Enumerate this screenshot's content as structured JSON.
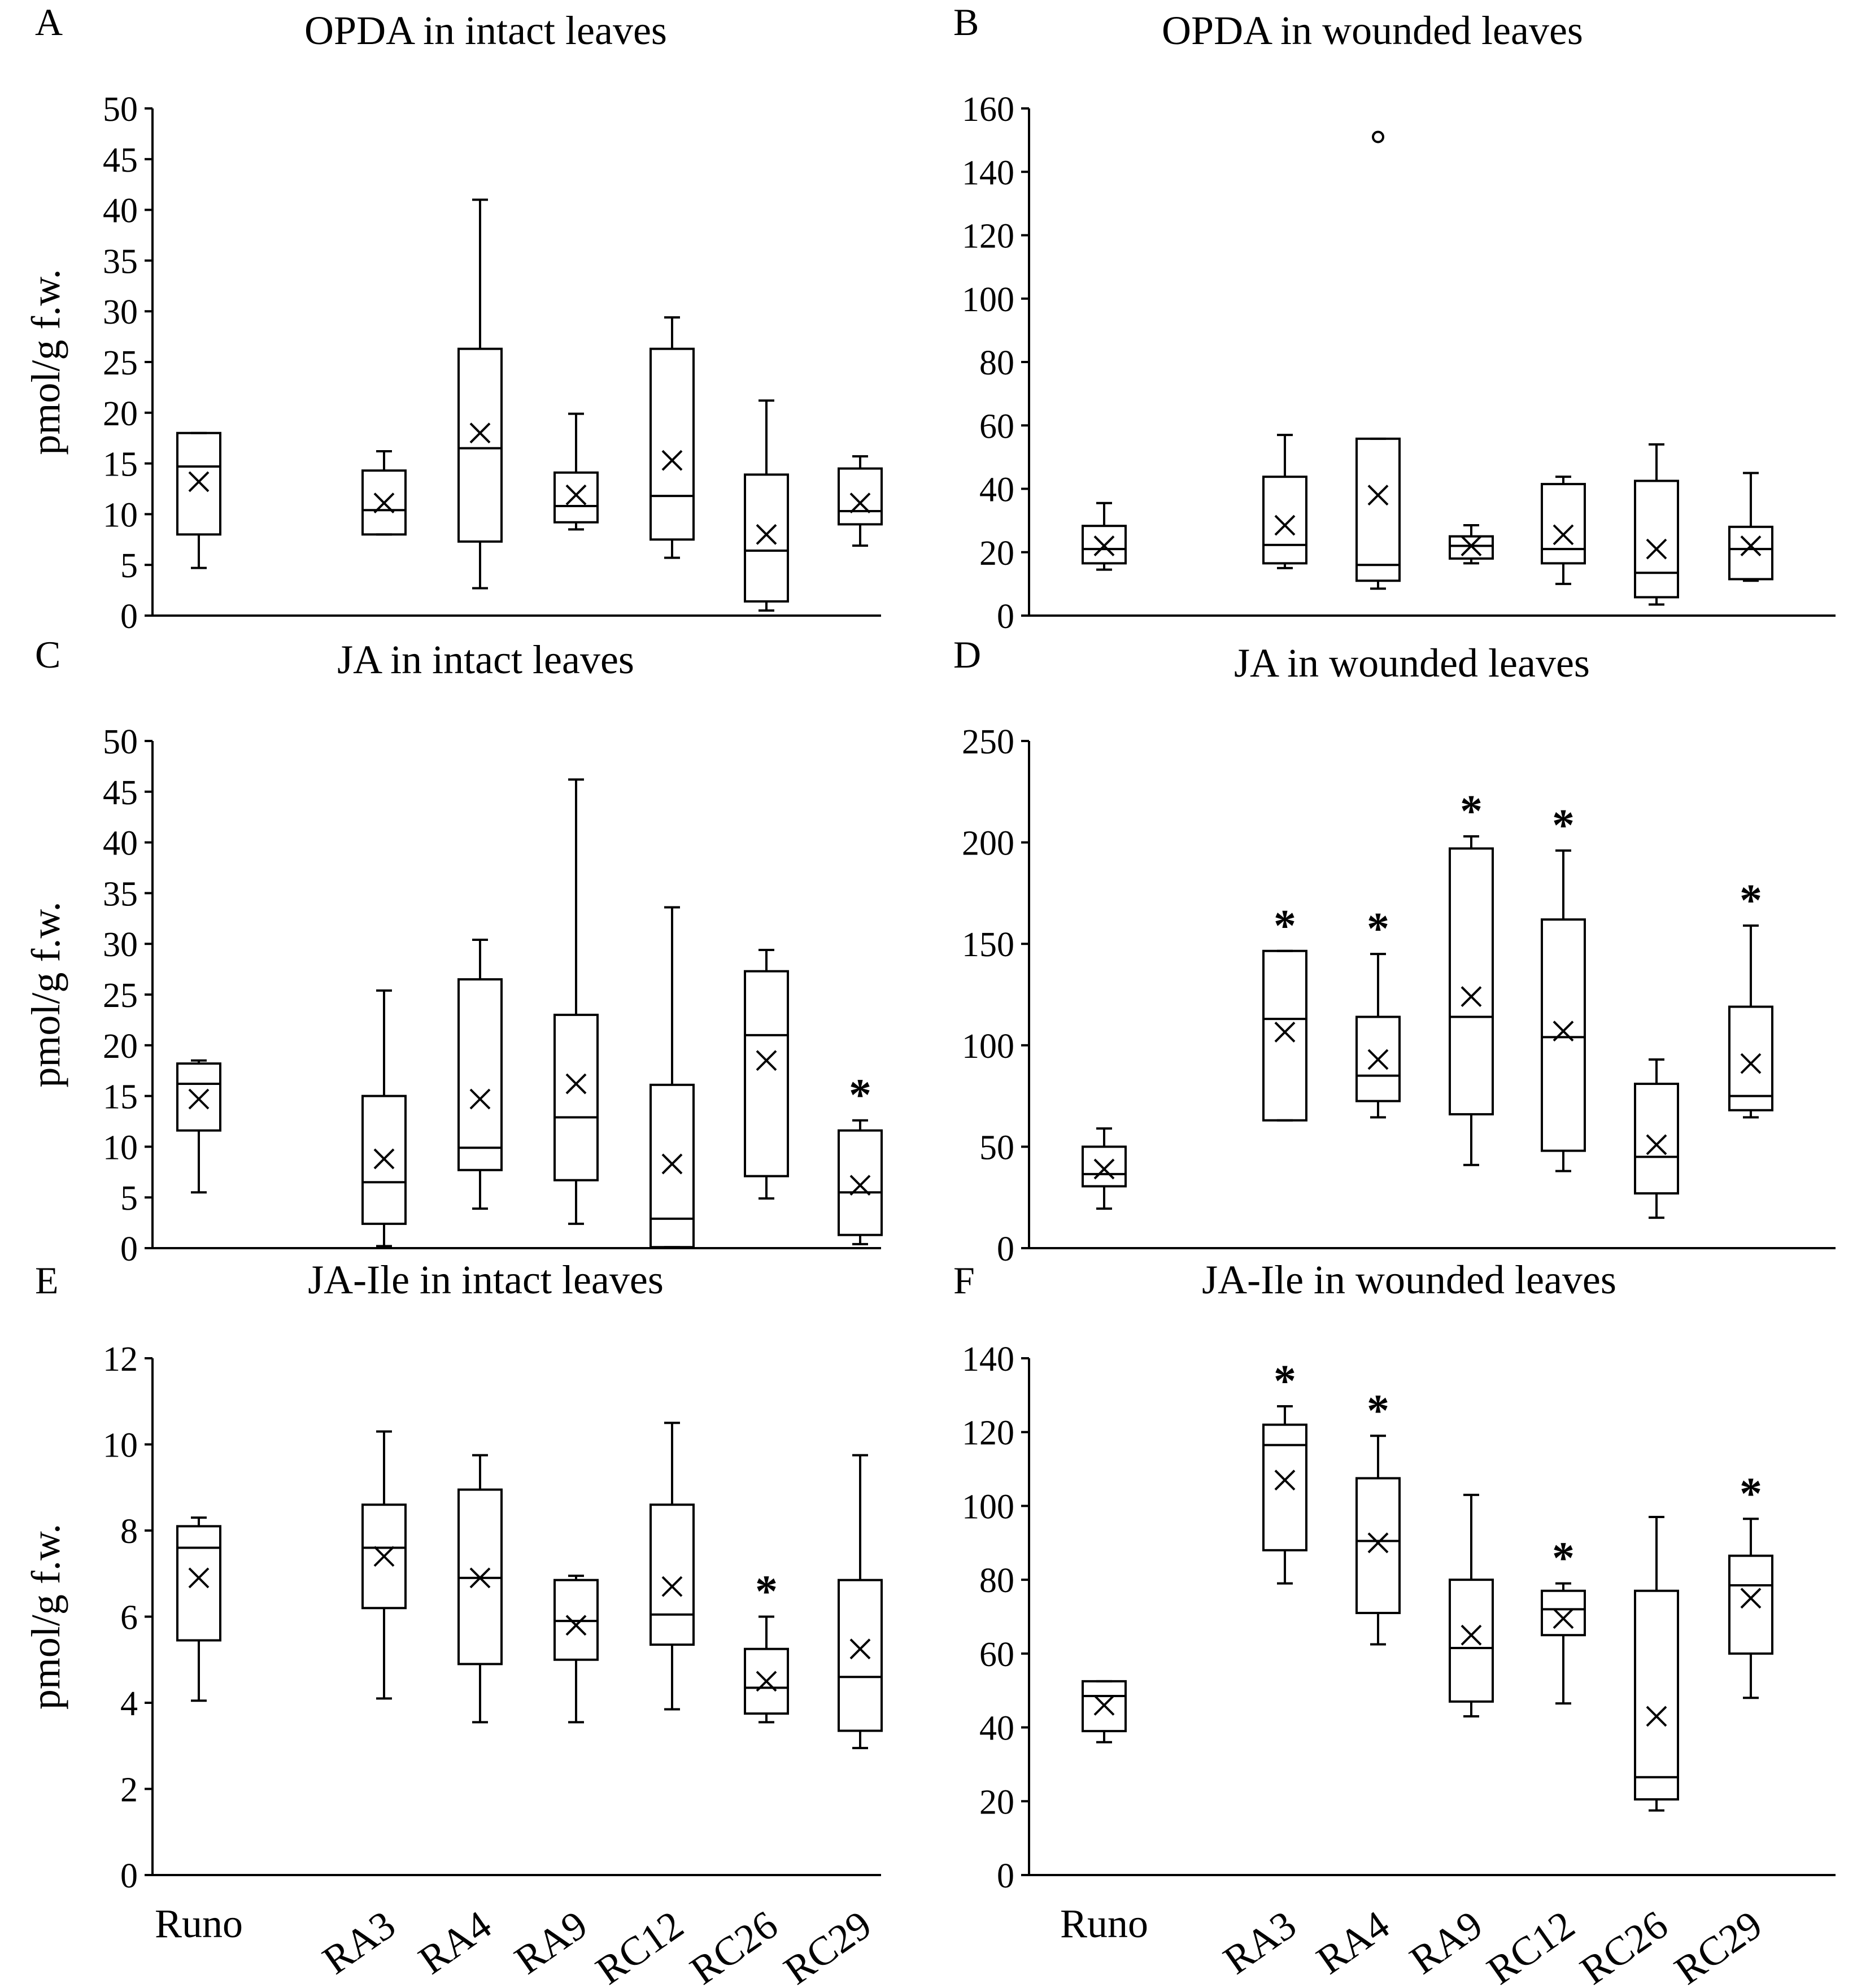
{
  "chart_data": [
    {
      "panel": "A",
      "type": "box",
      "title": "OPDA in intact leaves",
      "ylabel": "pmol/g f.w.",
      "ylim": [
        0,
        50
      ],
      "yticks": [
        0,
        5,
        10,
        15,
        20,
        25,
        30,
        35,
        40,
        45,
        50
      ],
      "categories": [
        "Runo",
        "RA3",
        "RA4",
        "RA9",
        "RC12",
        "RC26",
        "RC29"
      ],
      "boxes": [
        {
          "min": 4.7,
          "q1": 8.0,
          "median": 14.7,
          "q3": 18.0,
          "max": 18.0,
          "mean": 13.2,
          "sig": false
        },
        {
          "min": 8.0,
          "q1": 8.0,
          "median": 10.4,
          "q3": 14.3,
          "max": 16.2,
          "mean": 11.1,
          "sig": false
        },
        {
          "min": 2.7,
          "q1": 7.3,
          "median": 16.5,
          "q3": 26.3,
          "max": 41.0,
          "mean": 18.0,
          "sig": false
        },
        {
          "min": 8.5,
          "q1": 9.2,
          "median": 10.8,
          "q3": 14.1,
          "max": 19.9,
          "mean": 11.9,
          "sig": false
        },
        {
          "min": 5.7,
          "q1": 7.5,
          "median": 11.8,
          "q3": 26.3,
          "max": 29.4,
          "mean": 15.3,
          "sig": false
        },
        {
          "min": 0.5,
          "q1": 1.4,
          "median": 6.4,
          "q3": 13.9,
          "max": 21.2,
          "mean": 8.0,
          "sig": false
        },
        {
          "min": 6.9,
          "q1": 9.0,
          "median": 10.3,
          "q3": 14.5,
          "max": 15.7,
          "mean": 11.1,
          "sig": false
        }
      ],
      "outliers": []
    },
    {
      "panel": "B",
      "type": "box",
      "title": "OPDA in wounded leaves",
      "ylabel": "",
      "ylim": [
        0,
        160
      ],
      "yticks": [
        0,
        20,
        40,
        60,
        80,
        100,
        120,
        140,
        160
      ],
      "categories": [
        "Runo",
        "RA3",
        "RA4",
        "RA9",
        "RC12",
        "RC26",
        "RC29"
      ],
      "boxes": [
        {
          "min": 14.5,
          "q1": 16.5,
          "median": 21.0,
          "q3": 28.3,
          "max": 35.5,
          "mean": 22.0,
          "sig": false
        },
        {
          "min": 15.0,
          "q1": 16.5,
          "median": 22.3,
          "q3": 43.8,
          "max": 57.0,
          "mean": 28.5,
          "sig": false
        },
        {
          "min": 8.5,
          "q1": 11.0,
          "median": 16.0,
          "q3": 55.8,
          "max": 55.8,
          "mean": 38.0,
          "sig": false
        },
        {
          "min": 16.5,
          "q1": 18.0,
          "median": 22.0,
          "q3": 25.0,
          "max": 28.5,
          "mean": 22.0,
          "sig": false
        },
        {
          "min": 10.0,
          "q1": 16.5,
          "median": 21.0,
          "q3": 41.5,
          "max": 43.8,
          "mean": 25.5,
          "sig": false
        },
        {
          "min": 3.5,
          "q1": 5.8,
          "median": 13.5,
          "q3": 42.5,
          "max": 54.0,
          "mean": 21.0,
          "sig": false
        },
        {
          "min": 11.0,
          "q1": 11.5,
          "median": 21.0,
          "q3": 28.0,
          "max": 45.0,
          "mean": 22.0,
          "sig": false
        }
      ],
      "outliers": [
        {
          "category": "RA4",
          "value": 151
        }
      ]
    },
    {
      "panel": "C",
      "type": "box",
      "title": "JA in intact leaves",
      "ylabel": "pmol/g f.w.",
      "ylim": [
        0,
        50
      ],
      "yticks": [
        0,
        5,
        10,
        15,
        20,
        25,
        30,
        35,
        40,
        45,
        50
      ],
      "categories": [
        "Runo",
        "RA3",
        "RA4",
        "RA9",
        "RC12",
        "RC26",
        "RC29"
      ],
      "boxes": [
        {
          "min": 5.5,
          "q1": 11.6,
          "median": 16.2,
          "q3": 18.2,
          "max": 18.5,
          "mean": 14.7,
          "sig": false
        },
        {
          "min": 0.2,
          "q1": 2.4,
          "median": 6.5,
          "q3": 15.0,
          "max": 25.4,
          "mean": 8.8,
          "sig": false
        },
        {
          "min": 3.9,
          "q1": 7.7,
          "median": 9.9,
          "q3": 26.5,
          "max": 30.4,
          "mean": 14.7,
          "sig": false
        },
        {
          "min": 2.4,
          "q1": 6.7,
          "median": 12.9,
          "q3": 23.0,
          "max": 46.2,
          "mean": 16.2,
          "sig": false
        },
        {
          "min": 0.1,
          "q1": 0.1,
          "median": 2.9,
          "q3": 16.1,
          "max": 33.6,
          "mean": 8.3,
          "sig": false
        },
        {
          "min": 4.9,
          "q1": 7.1,
          "median": 21.0,
          "q3": 27.3,
          "max": 29.4,
          "mean": 18.5,
          "sig": false
        },
        {
          "min": 0.4,
          "q1": 1.3,
          "median": 5.5,
          "q3": 11.6,
          "max": 12.6,
          "mean": 6.2,
          "sig": true
        }
      ],
      "outliers": []
    },
    {
      "panel": "D",
      "type": "box",
      "title": "JA in wounded leaves",
      "ylabel": "",
      "ylim": [
        0,
        250
      ],
      "yticks": [
        0,
        50,
        100,
        150,
        200,
        250
      ],
      "categories": [
        "Runo",
        "RA3",
        "RA4",
        "RA9",
        "RC12",
        "RC26",
        "RC29"
      ],
      "boxes": [
        {
          "min": 19.5,
          "q1": 30.5,
          "median": 36.5,
          "q3": 50.0,
          "max": 59.0,
          "mean": 39.0,
          "sig": false
        },
        {
          "min": 63.0,
          "q1": 63.0,
          "median": 113.0,
          "q3": 146.5,
          "max": 146.5,
          "mean": 106.5,
          "sig": true
        },
        {
          "min": 64.5,
          "q1": 72.5,
          "median": 85.0,
          "q3": 114.0,
          "max": 145.0,
          "mean": 93.0,
          "sig": true
        },
        {
          "min": 41.0,
          "q1": 66.0,
          "median": 114.0,
          "q3": 197.0,
          "max": 203.0,
          "mean": 124.0,
          "sig": true
        },
        {
          "min": 38.0,
          "q1": 48.0,
          "median": 104.0,
          "q3": 162.0,
          "max": 196.0,
          "mean": 107.0,
          "sig": true
        },
        {
          "min": 15.0,
          "q1": 27.0,
          "median": 45.0,
          "q3": 81.0,
          "max": 93.0,
          "mean": 51.0,
          "sig": false
        },
        {
          "min": 64.5,
          "q1": 68.0,
          "median": 75.0,
          "q3": 119.0,
          "max": 159.0,
          "mean": 91.0,
          "sig": true
        }
      ],
      "outliers": []
    },
    {
      "panel": "E",
      "type": "box",
      "title": "JA-Ile in intact leaves",
      "ylabel": "pmol/g f.w.",
      "ylim": [
        0,
        12
      ],
      "yticks": [
        0,
        2,
        4,
        6,
        8,
        10,
        12
      ],
      "categories": [
        "Runo",
        "RA3",
        "RA4",
        "RA9",
        "RC12",
        "RC26",
        "RC29"
      ],
      "boxes": [
        {
          "min": 4.05,
          "q1": 5.45,
          "median": 7.6,
          "q3": 8.1,
          "max": 8.3,
          "mean": 6.9,
          "sig": false
        },
        {
          "min": 4.1,
          "q1": 6.2,
          "median": 7.6,
          "q3": 8.6,
          "max": 10.3,
          "mean": 7.4,
          "sig": false
        },
        {
          "min": 3.55,
          "q1": 4.9,
          "median": 6.9,
          "q3": 8.95,
          "max": 9.75,
          "mean": 6.9,
          "sig": false
        },
        {
          "min": 3.55,
          "q1": 5.0,
          "median": 5.9,
          "q3": 6.85,
          "max": 6.95,
          "mean": 5.8,
          "sig": false
        },
        {
          "min": 3.85,
          "q1": 5.35,
          "median": 6.05,
          "q3": 8.6,
          "max": 10.5,
          "mean": 6.7,
          "sig": false
        },
        {
          "min": 3.55,
          "q1": 3.75,
          "median": 4.35,
          "q3": 5.25,
          "max": 6.0,
          "mean": 4.5,
          "sig": true
        },
        {
          "min": 2.95,
          "q1": 3.35,
          "median": 4.6,
          "q3": 6.85,
          "max": 9.75,
          "mean": 5.25,
          "sig": false
        }
      ],
      "outliers": []
    },
    {
      "panel": "F",
      "type": "box",
      "title": "JA-Ile in wounded leaves",
      "ylabel": "",
      "ylim": [
        0,
        140
      ],
      "yticks": [
        0,
        20,
        40,
        60,
        80,
        100,
        120,
        140
      ],
      "categories": [
        "Runo",
        "RA3",
        "RA4",
        "RA9",
        "RC12",
        "RC26",
        "RC29"
      ],
      "boxes": [
        {
          "min": 36.0,
          "q1": 39.0,
          "median": 48.5,
          "q3": 52.5,
          "max": 52.5,
          "mean": 46.0,
          "sig": false
        },
        {
          "min": 79.0,
          "q1": 88.0,
          "median": 116.5,
          "q3": 122.0,
          "max": 127.0,
          "mean": 107.0,
          "sig": true
        },
        {
          "min": 62.5,
          "q1": 71.0,
          "median": 90.5,
          "q3": 107.5,
          "max": 119.0,
          "mean": 90.0,
          "sig": true
        },
        {
          "min": 43.0,
          "q1": 47.0,
          "median": 61.5,
          "q3": 80.0,
          "max": 103.0,
          "mean": 65.0,
          "sig": false
        },
        {
          "min": 46.5,
          "q1": 65.0,
          "median": 72.0,
          "q3": 77.0,
          "max": 79.0,
          "mean": 69.5,
          "sig": true
        },
        {
          "min": 17.5,
          "q1": 20.5,
          "median": 26.5,
          "q3": 77.0,
          "max": 97.0,
          "mean": 43.0,
          "sig": false
        },
        {
          "min": 48.0,
          "q1": 60.0,
          "median": 78.5,
          "q3": 86.5,
          "max": 96.5,
          "mean": 75.0,
          "sig": true
        }
      ],
      "outliers": []
    }
  ],
  "colors": {
    "line": "#000000",
    "background": "#ffffff"
  },
  "symbols": {
    "mean": "×",
    "significance": "*"
  }
}
